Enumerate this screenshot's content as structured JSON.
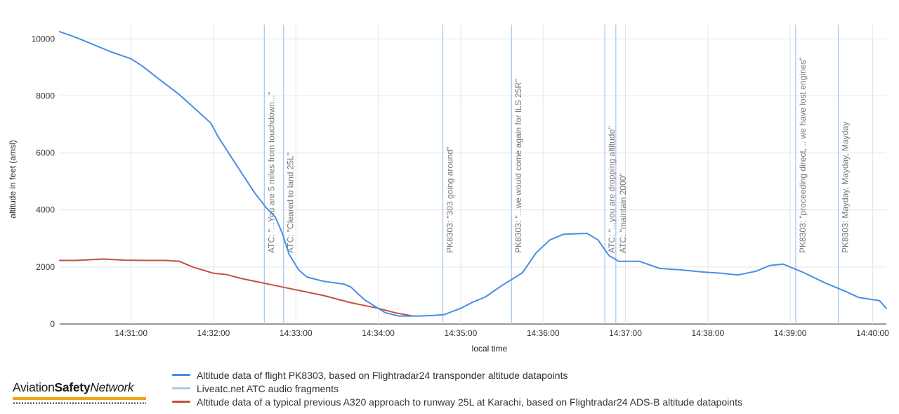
{
  "chart_data": {
    "type": "line",
    "xlabel": "local time",
    "ylabel": "altitude in feet (amsl)",
    "x_ticks": [
      "14:31:00",
      "14:32:00",
      "14:33:00",
      "14:34:00",
      "14:35:00",
      "14:36:00",
      "14:37:00",
      "14:38:00",
      "14:39:00",
      "14:40:00"
    ],
    "y_ticks": [
      0,
      2000,
      4000,
      6000,
      8000,
      10000
    ],
    "xlim": [
      "14:30:08",
      "14:40:10"
    ],
    "ylim": [
      0,
      10500
    ],
    "grid": true,
    "legend_position": "bottom",
    "series": [
      {
        "name": "Altitude data of flight PK8303, based on Flightradar24 transponder altitude datapoints",
        "color": "#4a8ee6",
        "points": [
          [
            "14:30:08",
            10250
          ],
          [
            "14:30:20",
            10050
          ],
          [
            "14:30:30",
            9850
          ],
          [
            "14:30:45",
            9550
          ],
          [
            "14:31:00",
            9300
          ],
          [
            "14:31:08",
            9050
          ],
          [
            "14:31:20",
            8600
          ],
          [
            "14:31:35",
            8050
          ],
          [
            "14:31:50",
            7400
          ],
          [
            "14:31:58",
            7050
          ],
          [
            "14:32:03",
            6600
          ],
          [
            "14:32:15",
            5700
          ],
          [
            "14:32:30",
            4600
          ],
          [
            "14:32:38",
            4100
          ],
          [
            "14:32:45",
            3750
          ],
          [
            "14:32:50",
            3200
          ],
          [
            "14:32:55",
            2450
          ],
          [
            "14:33:02",
            1900
          ],
          [
            "14:33:08",
            1650
          ],
          [
            "14:33:20",
            1500
          ],
          [
            "14:33:35",
            1400
          ],
          [
            "14:33:40",
            1300
          ],
          [
            "14:33:50",
            850
          ],
          [
            "14:34:05",
            400
          ],
          [
            "14:34:15",
            280
          ],
          [
            "14:34:30",
            280
          ],
          [
            "14:34:40",
            300
          ],
          [
            "14:34:48",
            330
          ],
          [
            "14:35:00",
            550
          ],
          [
            "14:35:08",
            750
          ],
          [
            "14:35:18",
            950
          ],
          [
            "14:35:30",
            1350
          ],
          [
            "14:35:45",
            1800
          ],
          [
            "14:35:55",
            2500
          ],
          [
            "14:36:05",
            2950
          ],
          [
            "14:36:15",
            3150
          ],
          [
            "14:36:32",
            3180
          ],
          [
            "14:36:40",
            2950
          ],
          [
            "14:36:48",
            2400
          ],
          [
            "14:36:55",
            2200
          ],
          [
            "14:37:10",
            2200
          ],
          [
            "14:37:25",
            1950
          ],
          [
            "14:37:40",
            1900
          ],
          [
            "14:37:55",
            1830
          ],
          [
            "14:38:10",
            1780
          ],
          [
            "14:38:22",
            1720
          ],
          [
            "14:38:35",
            1850
          ],
          [
            "14:38:45",
            2050
          ],
          [
            "14:38:55",
            2100
          ],
          [
            "14:39:00",
            2000
          ],
          [
            "14:39:10",
            1800
          ],
          [
            "14:39:25",
            1450
          ],
          [
            "14:39:40",
            1150
          ],
          [
            "14:39:50",
            930
          ],
          [
            "14:40:05",
            820
          ],
          [
            "14:40:10",
            550
          ]
        ]
      },
      {
        "name": "Liveatc.net ATC audio fragments",
        "color": "#a9c9ec",
        "markers": [
          "14:32:37",
          "14:32:51",
          "14:34:47",
          "14:35:37",
          "14:36:45",
          "14:36:53",
          "14:39:04",
          "14:39:35"
        ]
      },
      {
        "name": "Altitude data of a typical previous A320 approach to runway 25L at Karachi, based on Flightradar24 ADS-B altitude datapoints",
        "color": "#c0533c",
        "points": [
          [
            "14:30:08",
            2230
          ],
          [
            "14:30:20",
            2230
          ],
          [
            "14:30:40",
            2280
          ],
          [
            "14:30:55",
            2240
          ],
          [
            "14:31:10",
            2230
          ],
          [
            "14:31:25",
            2230
          ],
          [
            "14:31:35",
            2200
          ],
          [
            "14:31:45",
            2000
          ],
          [
            "14:32:00",
            1780
          ],
          [
            "14:32:10",
            1730
          ],
          [
            "14:32:20",
            1600
          ],
          [
            "14:32:40",
            1400
          ],
          [
            "14:33:00",
            1200
          ],
          [
            "14:33:20",
            1000
          ],
          [
            "14:33:40",
            750
          ],
          [
            "14:34:00",
            550
          ],
          [
            "14:34:12",
            400
          ],
          [
            "14:34:25",
            280
          ]
        ]
      }
    ],
    "annotations": [
      {
        "time": "14:32:37",
        "text": "ATC: \"...You are 5 miles from touchdown...\""
      },
      {
        "time": "14:32:51",
        "text": "ATC: \"Cleared to land 25L\""
      },
      {
        "time": "14:34:47",
        "text": "PK8303: \"303 going around\""
      },
      {
        "time": "14:35:37",
        "text": "PK8303: \"...we would come again for ILS 25R\""
      },
      {
        "time": "14:36:45",
        "text": "ATC: \"...you are dropping altitude\""
      },
      {
        "time": "14:36:53",
        "text": "ATC: \"maintain 2000\""
      },
      {
        "time": "14:39:04",
        "text": "PK8303: \"proceeding direct, .. we have lost engines\""
      },
      {
        "time": "14:39:35",
        "text": "PK8303: Mayday, Mayday, Mayday"
      }
    ]
  },
  "brand": {
    "part1": "Aviation",
    "part2": "Safety",
    "part3": "Network"
  }
}
